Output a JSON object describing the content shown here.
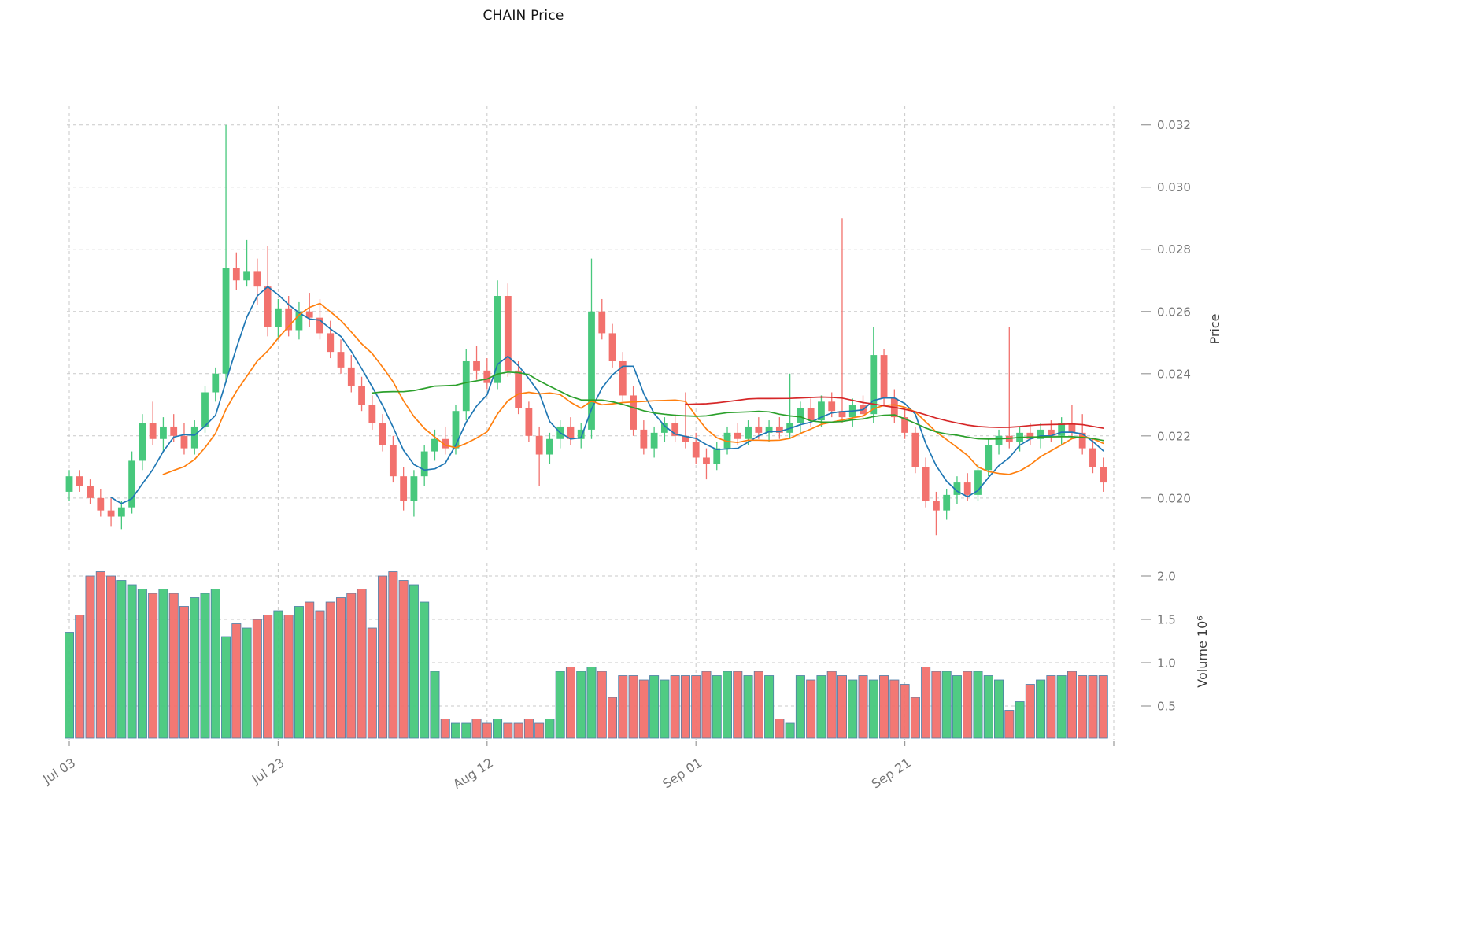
{
  "title": "CHAIN Price",
  "chart_data": {
    "type": "candlestick",
    "title": "CHAIN Price",
    "price_axis": {
      "label": "Price",
      "ticks": [
        0.02,
        0.022,
        0.024,
        0.026,
        0.028,
        0.03,
        0.032
      ],
      "range": [
        0.0183,
        0.0326
      ]
    },
    "volume_axis": {
      "label": "Volume",
      "scale_text": "10⁶",
      "ticks": [
        0.5,
        1.0,
        1.5,
        2.0
      ]
    },
    "x_axis": {
      "tick_indices": [
        0,
        20,
        40,
        60,
        80,
        100
      ],
      "tick_labels": [
        "Jul 03",
        "Jul 23",
        "Aug 12",
        "Sep 01",
        "Sep 21",
        ""
      ]
    },
    "colors": {
      "up": "#47c87c",
      "down": "#f2716d",
      "volume_edge": "#4d7ea8",
      "grid": "#c9c9c9",
      "tick_text": "#757575",
      "axis_label_text": "#3c3c3c"
    },
    "moving_averages": [
      {
        "window": 5,
        "color": "#1f77b4"
      },
      {
        "window": 10,
        "color": "#ff7f0e"
      },
      {
        "window": 30,
        "color": "#2ca02c"
      },
      {
        "window": 60,
        "color": "#d62728"
      }
    ],
    "columns": [
      "date",
      "open",
      "high",
      "low",
      "close",
      "volume_millions"
    ],
    "candles": [
      [
        "Jul 03",
        0.0202,
        0.0209,
        0.0199,
        0.0207,
        1.35
      ],
      [
        "Jul 04",
        0.0207,
        0.0209,
        0.0202,
        0.0204,
        1.55
      ],
      [
        "Jul 05",
        0.0204,
        0.0206,
        0.0198,
        0.02,
        2.0
      ],
      [
        "Jul 06",
        0.02,
        0.0203,
        0.0194,
        0.0196,
        2.05
      ],
      [
        "Jul 07",
        0.0196,
        0.02,
        0.0191,
        0.0194,
        2.0
      ],
      [
        "Jul 08",
        0.0194,
        0.0199,
        0.019,
        0.0197,
        1.95
      ],
      [
        "Jul 09",
        0.0197,
        0.0215,
        0.0195,
        0.0212,
        1.9
      ],
      [
        "Jul 10",
        0.0212,
        0.0227,
        0.0209,
        0.0224,
        1.85
      ],
      [
        "Jul 11",
        0.0224,
        0.0231,
        0.0217,
        0.0219,
        1.8
      ],
      [
        "Jul 12",
        0.0219,
        0.0226,
        0.0215,
        0.0223,
        1.85
      ],
      [
        "Jul 13",
        0.0223,
        0.0227,
        0.0218,
        0.022,
        1.8
      ],
      [
        "Jul 14",
        0.022,
        0.0224,
        0.0214,
        0.0216,
        1.65
      ],
      [
        "Jul 15",
        0.0216,
        0.0225,
        0.0214,
        0.0223,
        1.75
      ],
      [
        "Jul 16",
        0.0223,
        0.0236,
        0.0221,
        0.0234,
        1.8
      ],
      [
        "Jul 17",
        0.0234,
        0.0242,
        0.0231,
        0.024,
        1.85
      ],
      [
        "Jul 18",
        0.024,
        0.032,
        0.0237,
        0.0274,
        1.3
      ],
      [
        "Jul 19",
        0.0274,
        0.0279,
        0.0267,
        0.027,
        1.45
      ],
      [
        "Jul 20",
        0.027,
        0.0283,
        0.0268,
        0.0273,
        1.4
      ],
      [
        "Jul 21",
        0.0273,
        0.0277,
        0.0262,
        0.0268,
        1.5
      ],
      [
        "Jul 22",
        0.0268,
        0.0281,
        0.0252,
        0.0255,
        1.55
      ],
      [
        "Jul 23",
        0.0255,
        0.0264,
        0.0251,
        0.0261,
        1.6
      ],
      [
        "Jul 24",
        0.0261,
        0.0265,
        0.0252,
        0.0254,
        1.55
      ],
      [
        "Jul 25",
        0.0254,
        0.0263,
        0.0251,
        0.026,
        1.65
      ],
      [
        "Jul 26",
        0.026,
        0.0266,
        0.0255,
        0.0258,
        1.7
      ],
      [
        "Jul 27",
        0.0258,
        0.0264,
        0.0251,
        0.0253,
        1.6
      ],
      [
        "Jul 28",
        0.0253,
        0.0257,
        0.0245,
        0.0247,
        1.7
      ],
      [
        "Jul 29",
        0.0247,
        0.0251,
        0.024,
        0.0242,
        1.75
      ],
      [
        "Jul 30",
        0.0242,
        0.0246,
        0.0234,
        0.0236,
        1.8
      ],
      [
        "Jul 31",
        0.0236,
        0.0239,
        0.0228,
        0.023,
        1.85
      ],
      [
        "Aug 01",
        0.023,
        0.0233,
        0.0222,
        0.0224,
        1.4
      ],
      [
        "Aug 02",
        0.0224,
        0.0227,
        0.0215,
        0.0217,
        2.0
      ],
      [
        "Aug 03",
        0.0217,
        0.022,
        0.0205,
        0.0207,
        2.05
      ],
      [
        "Aug 04",
        0.0207,
        0.021,
        0.0196,
        0.0199,
        1.95
      ],
      [
        "Aug 05",
        0.0199,
        0.0209,
        0.0194,
        0.0207,
        1.9
      ],
      [
        "Aug 06",
        0.0207,
        0.0217,
        0.0204,
        0.0215,
        1.7
      ],
      [
        "Aug 07",
        0.0215,
        0.0222,
        0.0212,
        0.0219,
        0.9
      ],
      [
        "Aug 08",
        0.0219,
        0.0223,
        0.0214,
        0.0216,
        0.35
      ],
      [
        "Aug 09",
        0.0216,
        0.023,
        0.0214,
        0.0228,
        0.3
      ],
      [
        "Aug 10",
        0.0228,
        0.0248,
        0.0225,
        0.0244,
        0.3
      ],
      [
        "Aug 11",
        0.0244,
        0.0249,
        0.0238,
        0.0241,
        0.35
      ],
      [
        "Aug 12",
        0.0241,
        0.0245,
        0.0235,
        0.0237,
        0.3
      ],
      [
        "Aug 13",
        0.0237,
        0.027,
        0.0235,
        0.0265,
        0.35
      ],
      [
        "Aug 14",
        0.0265,
        0.0269,
        0.0239,
        0.0241,
        0.3
      ],
      [
        "Aug 15",
        0.0241,
        0.0244,
        0.0227,
        0.0229,
        0.3
      ],
      [
        "Aug 16",
        0.0229,
        0.0231,
        0.0218,
        0.022,
        0.35
      ],
      [
        "Aug 17",
        0.022,
        0.0223,
        0.0204,
        0.0214,
        0.3
      ],
      [
        "Aug 18",
        0.0214,
        0.0221,
        0.0211,
        0.0219,
        0.35
      ],
      [
        "Aug 19",
        0.0219,
        0.0225,
        0.0216,
        0.0223,
        0.9
      ],
      [
        "Aug 20",
        0.0223,
        0.0226,
        0.0217,
        0.0219,
        0.95
      ],
      [
        "Aug 21",
        0.0219,
        0.0224,
        0.0216,
        0.0222,
        0.9
      ],
      [
        "Aug 22",
        0.0222,
        0.0277,
        0.0219,
        0.026,
        0.95
      ],
      [
        "Aug 23",
        0.026,
        0.0264,
        0.0251,
        0.0253,
        0.9
      ],
      [
        "Aug 24",
        0.0253,
        0.0256,
        0.0242,
        0.0244,
        0.6
      ],
      [
        "Aug 25",
        0.0244,
        0.0247,
        0.0231,
        0.0233,
        0.85
      ],
      [
        "Aug 26",
        0.0233,
        0.0236,
        0.022,
        0.0222,
        0.85
      ],
      [
        "Aug 27",
        0.0222,
        0.0225,
        0.0214,
        0.0216,
        0.8
      ],
      [
        "Aug 28",
        0.0216,
        0.0223,
        0.0213,
        0.0221,
        0.85
      ],
      [
        "Aug 29",
        0.0221,
        0.0226,
        0.0218,
        0.0224,
        0.8
      ],
      [
        "Aug 30",
        0.0224,
        0.0227,
        0.0218,
        0.022,
        0.85
      ],
      [
        "Aug 31",
        0.022,
        0.0234,
        0.0216,
        0.0218,
        0.85
      ],
      [
        "Sep 01",
        0.0218,
        0.0221,
        0.0211,
        0.0213,
        0.85
      ],
      [
        "Sep 02",
        0.0213,
        0.0216,
        0.0206,
        0.0211,
        0.9
      ],
      [
        "Sep 03",
        0.0211,
        0.0218,
        0.0209,
        0.0216,
        0.85
      ],
      [
        "Sep 04",
        0.0216,
        0.0223,
        0.0214,
        0.0221,
        0.9
      ],
      [
        "Sep 05",
        0.0221,
        0.0224,
        0.0217,
        0.0219,
        0.9
      ],
      [
        "Sep 06",
        0.0219,
        0.0225,
        0.0217,
        0.0223,
        0.85
      ],
      [
        "Sep 07",
        0.0223,
        0.0226,
        0.0219,
        0.0221,
        0.9
      ],
      [
        "Sep 08",
        0.0221,
        0.0225,
        0.0218,
        0.0223,
        0.85
      ],
      [
        "Sep 09",
        0.0223,
        0.0226,
        0.0219,
        0.0221,
        0.35
      ],
      [
        "Sep 10",
        0.0221,
        0.024,
        0.0219,
        0.0224,
        0.3
      ],
      [
        "Sep 11",
        0.0224,
        0.0231,
        0.0221,
        0.0229,
        0.85
      ],
      [
        "Sep 12",
        0.0229,
        0.0232,
        0.0223,
        0.0225,
        0.8
      ],
      [
        "Sep 13",
        0.0225,
        0.0233,
        0.0223,
        0.0231,
        0.85
      ],
      [
        "Sep 14",
        0.0231,
        0.0234,
        0.0226,
        0.0228,
        0.9
      ],
      [
        "Sep 15",
        0.0228,
        0.029,
        0.0224,
        0.0226,
        0.85
      ],
      [
        "Sep 16",
        0.0226,
        0.0232,
        0.0223,
        0.023,
        0.8
      ],
      [
        "Sep 17",
        0.023,
        0.0233,
        0.0225,
        0.0227,
        0.85
      ],
      [
        "Sep 18",
        0.0227,
        0.0255,
        0.0224,
        0.0246,
        0.8
      ],
      [
        "Sep 19",
        0.0246,
        0.0248,
        0.023,
        0.0232,
        0.85
      ],
      [
        "Sep 20",
        0.0232,
        0.0235,
        0.0224,
        0.0226,
        0.8
      ],
      [
        "Sep 21",
        0.0226,
        0.0229,
        0.0219,
        0.0221,
        0.75
      ],
      [
        "Sep 22",
        0.0221,
        0.0223,
        0.0208,
        0.021,
        0.6
      ],
      [
        "Sep 23",
        0.021,
        0.0213,
        0.0197,
        0.0199,
        0.95
      ],
      [
        "Sep 24",
        0.0199,
        0.0202,
        0.0188,
        0.0196,
        0.9
      ],
      [
        "Sep 25",
        0.0196,
        0.0203,
        0.0193,
        0.0201,
        0.9
      ],
      [
        "Sep 26",
        0.0201,
        0.0207,
        0.0198,
        0.0205,
        0.85
      ],
      [
        "Sep 27",
        0.0205,
        0.0208,
        0.0199,
        0.0201,
        0.9
      ],
      [
        "Sep 28",
        0.0201,
        0.0211,
        0.0199,
        0.0209,
        0.9
      ],
      [
        "Sep 29",
        0.0209,
        0.0219,
        0.0207,
        0.0217,
        0.85
      ],
      [
        "Sep 30",
        0.0217,
        0.0222,
        0.0214,
        0.022,
        0.8
      ],
      [
        "Oct 01",
        0.022,
        0.0255,
        0.0216,
        0.0218,
        0.45
      ],
      [
        "Oct 02",
        0.0218,
        0.0223,
        0.0215,
        0.0221,
        0.55
      ],
      [
        "Oct 03",
        0.0221,
        0.0224,
        0.0217,
        0.0219,
        0.75
      ],
      [
        "Oct 04",
        0.0219,
        0.0224,
        0.0216,
        0.0222,
        0.8
      ],
      [
        "Oct 05",
        0.0222,
        0.0225,
        0.0218,
        0.022,
        0.85
      ],
      [
        "Oct 06",
        0.022,
        0.0226,
        0.0217,
        0.0224,
        0.85
      ],
      [
        "Oct 07",
        0.0224,
        0.023,
        0.0219,
        0.0221,
        0.9
      ],
      [
        "Oct 08",
        0.0221,
        0.0227,
        0.0214,
        0.0216,
        0.85
      ],
      [
        "Oct 09",
        0.0216,
        0.0219,
        0.0208,
        0.021,
        0.85
      ],
      [
        "Oct 10",
        0.021,
        0.0213,
        0.0202,
        0.0205,
        0.85
      ]
    ]
  }
}
